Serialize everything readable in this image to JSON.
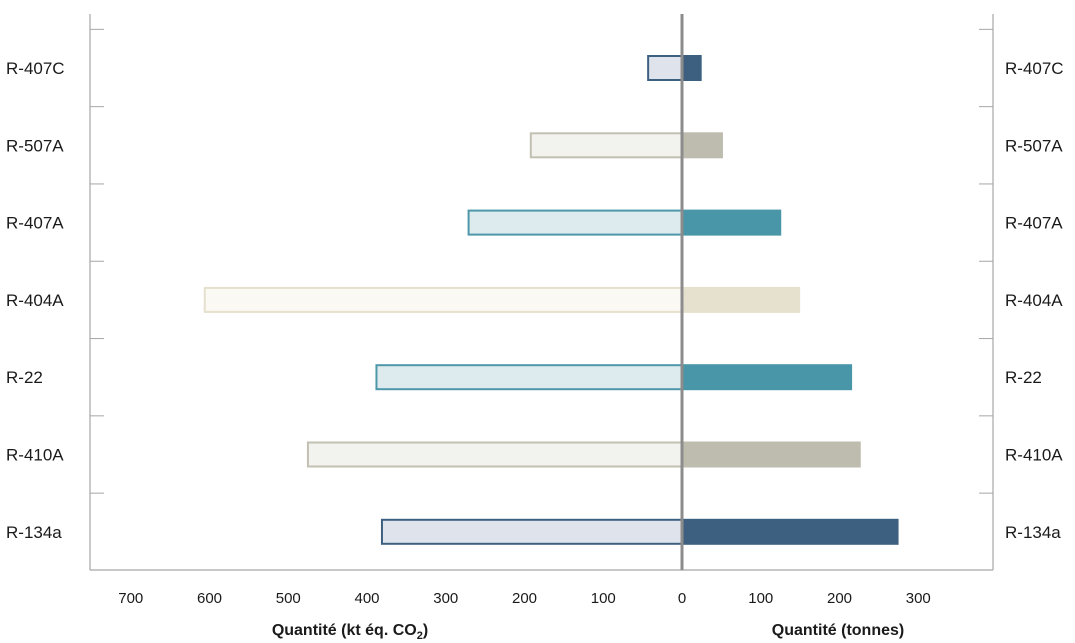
{
  "chart_data": {
    "type": "bar",
    "orientation": "horizontal-back-to-back",
    "categories": [
      "R-407C",
      "R-507A",
      "R-407A",
      "R-404A",
      "R-22",
      "R-410A",
      "R-134a"
    ],
    "series": [
      {
        "side": "left",
        "values": [
          43,
          192,
          271,
          606,
          388,
          475,
          381
        ]
      },
      {
        "side": "right",
        "values": [
          25,
          52,
          126,
          150,
          216,
          227,
          275
        ]
      }
    ],
    "left_axis": {
      "title_main": "Quantité (kt éq. CO",
      "title_sub": "2",
      "title_end": ")",
      "ticks": [
        700,
        600,
        500,
        400,
        300,
        200,
        100,
        0
      ],
      "range": [
        0,
        700
      ]
    },
    "right_axis": {
      "title": "Quantité (tonnes)",
      "ticks": [
        100,
        200,
        300
      ],
      "range": [
        0,
        300
      ]
    },
    "colors": {
      "R-407C": {
        "fill_left": "#dfe4ec",
        "stroke_left": "#3e6080",
        "fill_right": "#3e6080"
      },
      "R-507A": {
        "fill_left": "#f2f2ef",
        "stroke_left": "#c2c0b2",
        "fill_right": "#bebcae"
      },
      "R-407A": {
        "fill_left": "#ddebef",
        "stroke_left": "#4d97a9",
        "fill_right": "#4896a8"
      },
      "R-404A": {
        "fill_left": "#fbf9f3",
        "stroke_left": "#e6e0cc",
        "fill_right": "#e6e0ce"
      },
      "R-22": {
        "fill_left": "#ddebef",
        "stroke_left": "#4d97a9",
        "fill_right": "#4896a8"
      },
      "R-410A": {
        "fill_left": "#f2f2ef",
        "stroke_left": "#c2c0b2",
        "fill_right": "#bebcae"
      },
      "R-134a": {
        "fill_left": "#dfe4ec",
        "stroke_left": "#3e6080",
        "fill_right": "#3e6080"
      }
    },
    "grid": false
  }
}
